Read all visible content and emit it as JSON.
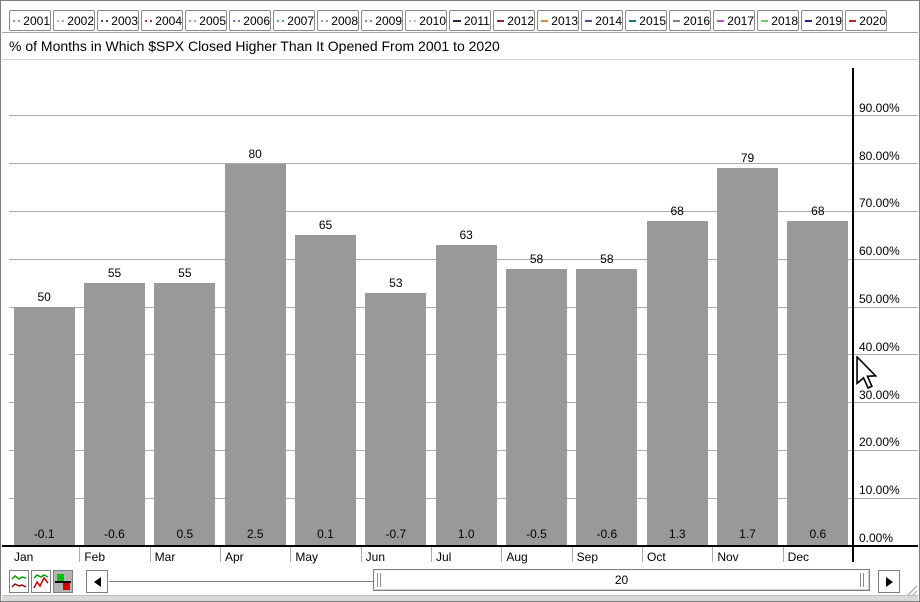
{
  "title": "% of Months in Which $SPX Closed Higher Than It Opened From 2001 to 2020",
  "legend": {
    "years": [
      {
        "year": "2001",
        "color": "#c878c8",
        "style": "dotted"
      },
      {
        "year": "2002",
        "color": "#90c890",
        "style": "dotted"
      },
      {
        "year": "2003",
        "color": "#3c3c96",
        "style": "dotted"
      },
      {
        "year": "2004",
        "color": "#963c3c",
        "style": "dotted"
      },
      {
        "year": "2005",
        "color": "#d29678",
        "style": "dotted"
      },
      {
        "year": "2006",
        "color": "#786ab4",
        "style": "dotted"
      },
      {
        "year": "2007",
        "color": "#5a96b4",
        "style": "dotted"
      },
      {
        "year": "2008",
        "color": "#969696",
        "style": "dotted"
      },
      {
        "year": "2009",
        "color": "#c860b4",
        "style": "dotted"
      },
      {
        "year": "2010",
        "color": "#a0d2a0",
        "style": "dotted"
      },
      {
        "year": "2011",
        "color": "#28285a",
        "style": "solid"
      },
      {
        "year": "2012",
        "color": "#8c2828",
        "style": "solid"
      },
      {
        "year": "2013",
        "color": "#d28846",
        "style": "solid"
      },
      {
        "year": "2014",
        "color": "#644687",
        "style": "solid"
      },
      {
        "year": "2015",
        "color": "#1e7878",
        "style": "solid"
      },
      {
        "year": "2016",
        "color": "#828282",
        "style": "solid"
      },
      {
        "year": "2017",
        "color": "#c850c8",
        "style": "solid"
      },
      {
        "year": "2018",
        "color": "#6ec86e",
        "style": "solid"
      },
      {
        "year": "2019",
        "color": "#28288c",
        "style": "solid"
      },
      {
        "year": "2020",
        "color": "#b42828",
        "style": "solid"
      }
    ]
  },
  "chart_data": {
    "type": "bar",
    "title": "% of Months in Which $SPX Closed Higher Than It Opened From 2001 to 2020",
    "categories": [
      "Jan",
      "Feb",
      "Mar",
      "Apr",
      "May",
      "Jun",
      "Jul",
      "Aug",
      "Sep",
      "Oct",
      "Nov",
      "Dec"
    ],
    "values": [
      50,
      55,
      55,
      80,
      65,
      53,
      63,
      58,
      58,
      68,
      79,
      68
    ],
    "value_labels": [
      "50",
      "55",
      "55",
      "80",
      "65",
      "53",
      "63",
      "58",
      "58",
      "68",
      "79",
      "68"
    ],
    "bar_bottom_labels": [
      "-0.1",
      "-0.6",
      "0.5",
      "2.5",
      "0.1",
      "-0.7",
      "1.0",
      "-0.5",
      "-0.6",
      "1.3",
      "1.7",
      "0.6"
    ],
    "bar_color": "#999999",
    "xlabel": "",
    "ylabel": "",
    "ylim": [
      0,
      100
    ],
    "grid": true,
    "y_axis_side": "right",
    "yticks": [
      {
        "value": 0,
        "label": "0.00%"
      },
      {
        "value": 10,
        "label": "10.00%"
      },
      {
        "value": 20,
        "label": "20.00%"
      },
      {
        "value": 30,
        "label": "30.00%"
      },
      {
        "value": 40,
        "label": "40.00%"
      },
      {
        "value": 50,
        "label": "50.00%"
      },
      {
        "value": 60,
        "label": "60.00%"
      },
      {
        "value": 70,
        "label": "70.00%"
      },
      {
        "value": 80,
        "label": "80.00%"
      },
      {
        "value": 90,
        "label": "90.00%"
      }
    ]
  },
  "toolbar": {
    "chart_type_icons": [
      {
        "name": "line-chart-icon",
        "selected": false
      },
      {
        "name": "zigzag-chart-icon",
        "selected": false
      },
      {
        "name": "histogram-icon",
        "selected": true
      }
    ],
    "scrollbar": {
      "value": "20"
    }
  }
}
